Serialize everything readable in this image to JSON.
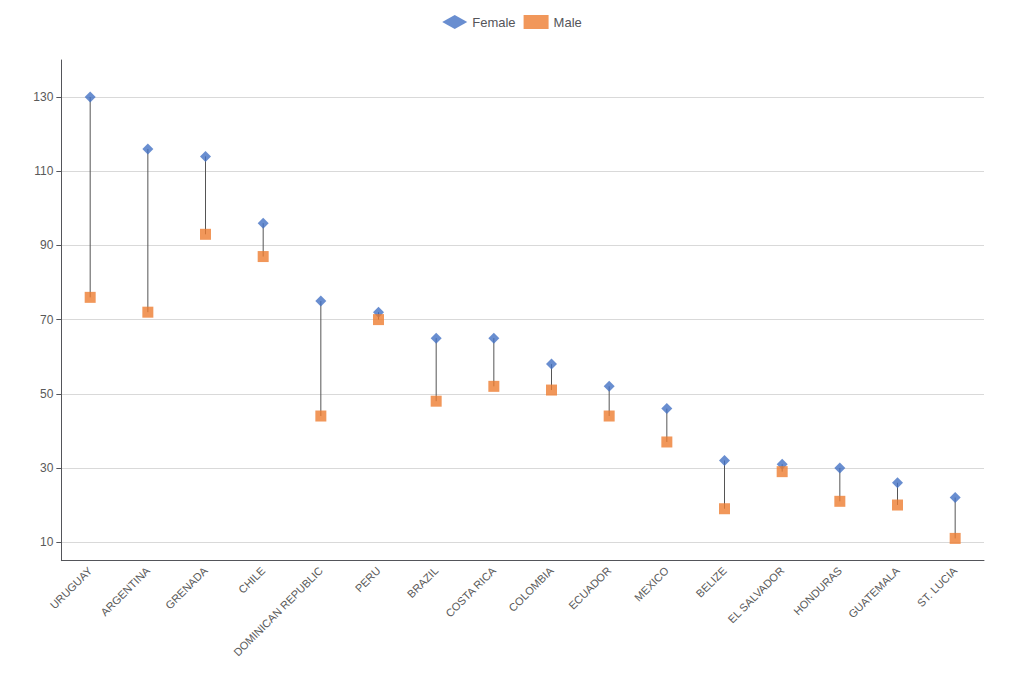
{
  "chart_data": {
    "type": "dumbbell",
    "categories": [
      "URUGUAY",
      "ARGENTINA",
      "GRENADA",
      "CHILE",
      "DOMINICAN REPUBLIC",
      "PERU",
      "BRAZIL",
      "COSTA RICA",
      "COLOMBIA",
      "ECUADOR",
      "MEXICO",
      "BELIZE",
      "EL SALVADOR",
      "HONDURAS",
      "GUATEMALA",
      "ST. LUCIA"
    ],
    "series": [
      {
        "name": "Female",
        "color": "#4472c4",
        "marker": "diamond",
        "values": [
          130,
          116,
          114,
          96,
          75,
          72,
          65,
          65,
          58,
          52,
          46,
          32,
          31,
          30,
          26,
          22
        ]
      },
      {
        "name": "Male",
        "color": "#ed7d31",
        "marker": "square",
        "values": [
          76,
          72,
          93,
          87,
          44,
          70,
          48,
          52,
          51,
          44,
          37,
          19,
          29,
          21,
          20,
          11
        ]
      }
    ],
    "ylim": [
      5,
      140
    ],
    "yticks": [
      10,
      30,
      50,
      70,
      90,
      110,
      130
    ],
    "grid": true,
    "legend": "top"
  }
}
